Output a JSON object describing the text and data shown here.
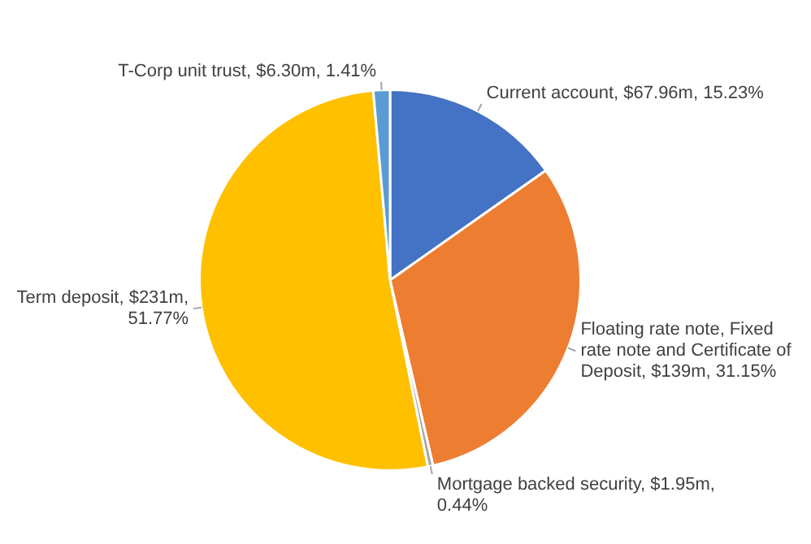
{
  "chart_data": {
    "type": "pie",
    "categories": [
      "Current account",
      "Floating rate note, Fixed rate note and Certificate of Deposit",
      "Mortgage backed security",
      "Term deposit",
      "T-Corp unit trust"
    ],
    "values": [
      15.23,
      31.15,
      0.44,
      51.77,
      1.41
    ],
    "value_labels": [
      "$67.96m, 15.23%",
      "$139m, 31.15%",
      "$1.95m, 0.44%",
      "$231m, 51.77%",
      "$6.30m, 1.41%"
    ],
    "colors": [
      "#4472c4",
      "#ed7d31",
      "#a5a5a5",
      "#ffc000",
      "#5b9bd5"
    ],
    "legend": false
  }
}
